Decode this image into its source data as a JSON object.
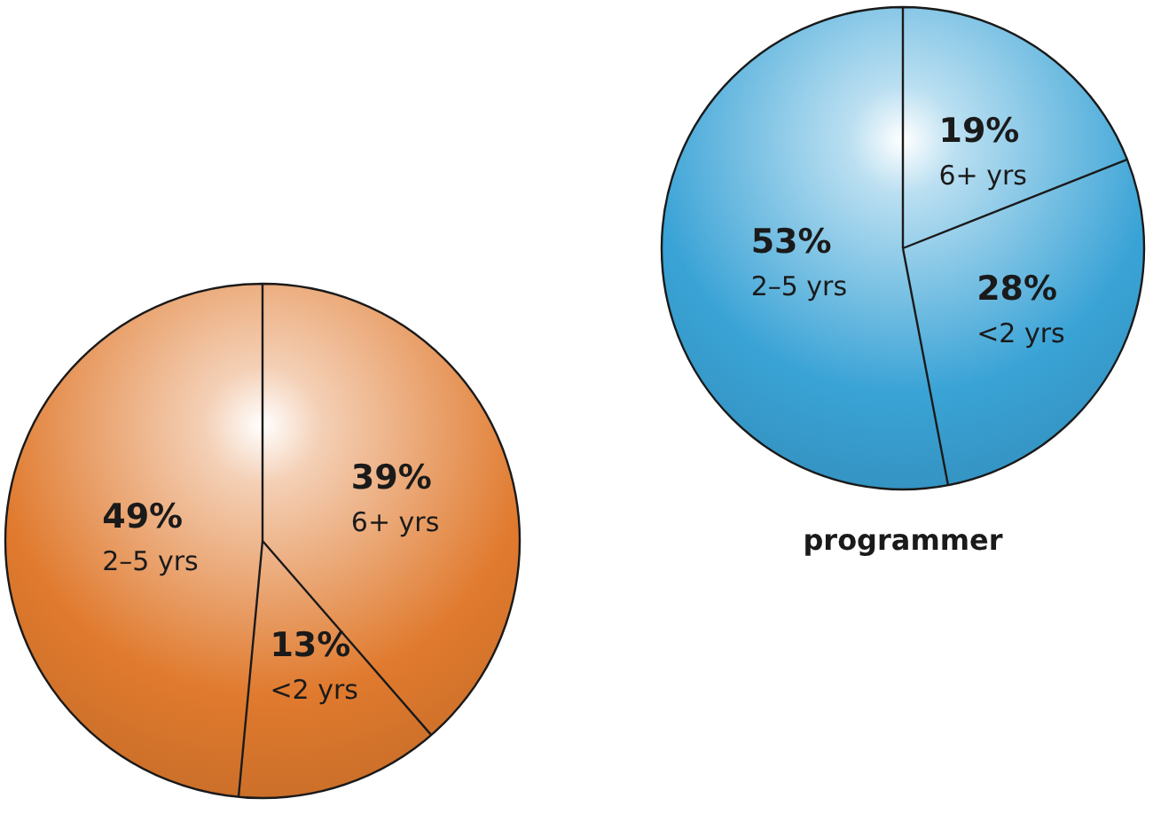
{
  "chart_data": [
    {
      "type": "pie",
      "categories": [
        "6+ yrs",
        "<2 yrs",
        "2–5 yrs"
      ],
      "values": [
        39,
        13,
        49
      ],
      "colors": [
        "#e07a2e",
        "#e07a2e",
        "#e07a2e"
      ],
      "value_labels": [
        "39%",
        "13%",
        "49%"
      ]
    },
    {
      "type": "pie",
      "title": "programmer",
      "categories": [
        "6+ yrs",
        "<2 yrs",
        "2–5 yrs"
      ],
      "values": [
        19,
        28,
        53
      ],
      "colors": [
        "#3aa3d6",
        "#3aa3d6",
        "#3aa3d6"
      ],
      "value_labels": [
        "19%",
        "28%",
        "53%"
      ]
    }
  ]
}
